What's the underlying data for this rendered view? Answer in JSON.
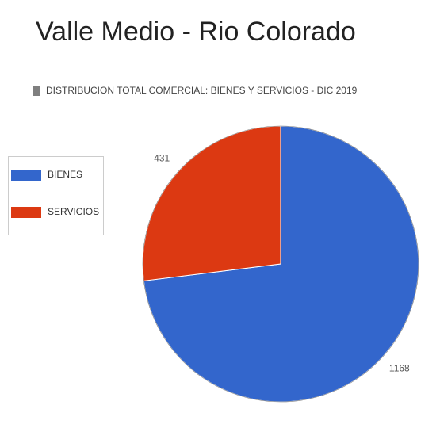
{
  "chart_data": {
    "type": "pie",
    "title": "Valle Medio - Rio Colorado",
    "subtitle": "DISTRIBUCION TOTAL COMERCIAL: BIENES Y SERVICIOS - DIC 2019",
    "categories": [
      "BIENES",
      "SERVICIOS"
    ],
    "values": [
      1168,
      431
    ],
    "colors": [
      "#3366cc",
      "#dc3912"
    ]
  }
}
